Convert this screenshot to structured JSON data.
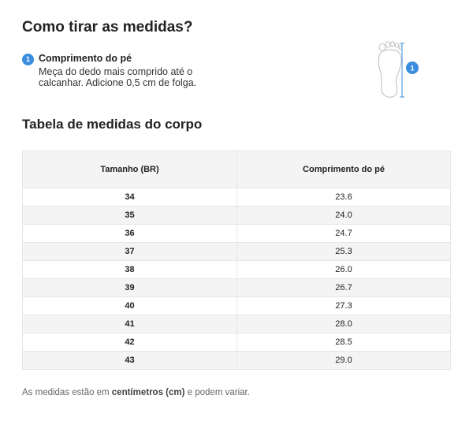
{
  "how_to": {
    "title": "Como tirar as medidas?",
    "step": {
      "number": "1",
      "title": "Comprimento do pé",
      "description": "Meça do dedo mais comprido até o calcanhar. Adicione 0,5 cm de folga."
    },
    "illustration_badge": "1",
    "accent_color": "#3a8dde"
  },
  "table": {
    "title": "Tabela de medidas do corpo",
    "headers": [
      "Tamanho (BR)",
      "Comprimento do pé"
    ],
    "rows": [
      [
        "34",
        "23.6"
      ],
      [
        "35",
        "24.0"
      ],
      [
        "36",
        "24.7"
      ],
      [
        "37",
        "25.3"
      ],
      [
        "38",
        "26.0"
      ],
      [
        "39",
        "26.7"
      ],
      [
        "40",
        "27.3"
      ],
      [
        "41",
        "28.0"
      ],
      [
        "42",
        "28.5"
      ],
      [
        "43",
        "29.0"
      ]
    ]
  },
  "footnote": {
    "before": "As medidas estão em ",
    "bold": "centímetros (cm)",
    "after": " e podem variar."
  }
}
